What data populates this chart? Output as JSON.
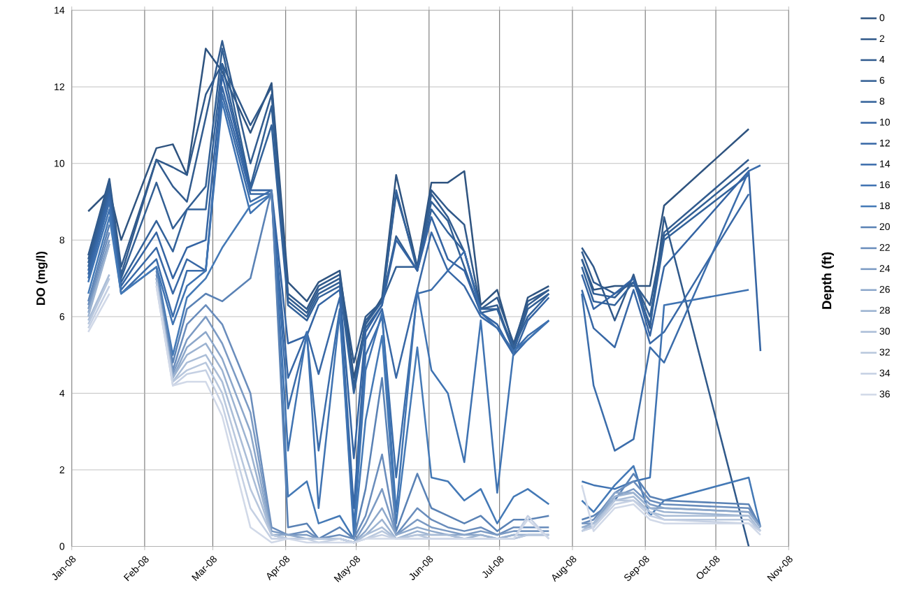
{
  "chart_data": {
    "type": "line",
    "ylabel": "DO (mg/l)",
    "legend_title": "Depth (ft)",
    "legend": "right",
    "grid": true,
    "marker": "none",
    "line_style": "solid",
    "x": [
      "2008-01-08",
      "2008-01-17",
      "2008-01-22",
      "2008-02-06",
      "2008-02-13",
      "2008-02-19",
      "2008-02-27",
      "2008-03-05",
      "2008-03-17",
      "2008-03-26",
      "2008-04-02",
      "2008-04-10",
      "2008-04-15",
      "2008-04-24",
      "2008-04-30",
      "2008-05-05",
      "2008-05-12",
      "2008-05-18",
      "2008-05-27",
      "2008-06-02",
      "2008-06-09",
      "2008-06-16",
      "2008-06-23",
      "2008-06-30",
      "2008-07-07",
      "2008-07-13",
      "2008-07-22",
      "2008-07-29",
      "2008-08-05",
      "2008-08-10",
      "2008-08-19",
      "2008-08-27",
      "2008-09-03",
      "2008-09-09",
      "2008-10-15",
      "2008-10-20"
    ],
    "xlim": [
      "2008-01-01",
      "2008-11-01"
    ],
    "xticks": [
      {
        "value": "2008-01-01",
        "label": "Jan-08"
      },
      {
        "value": "2008-02-01",
        "label": "Feb-08"
      },
      {
        "value": "2008-03-01",
        "label": "Mar-08"
      },
      {
        "value": "2008-04-01",
        "label": "Apr-08"
      },
      {
        "value": "2008-05-01",
        "label": "May-08"
      },
      {
        "value": "2008-06-01",
        "label": "Jun-08"
      },
      {
        "value": "2008-07-01",
        "label": "Jul-08"
      },
      {
        "value": "2008-08-01",
        "label": "Aug-08"
      },
      {
        "value": "2008-09-01",
        "label": "Sep-08"
      },
      {
        "value": "2008-10-01",
        "label": "Oct-08"
      },
      {
        "value": "2008-11-01",
        "label": "Nov-08"
      }
    ],
    "ylim": [
      0,
      14
    ],
    "yticks": [
      0,
      2,
      4,
      6,
      8,
      10,
      12,
      14
    ],
    "series": [
      {
        "name": "0",
        "color": "#2f5480",
        "values": [
          8.75,
          9.3,
          8.0,
          10.4,
          10.5,
          9.7,
          13.0,
          12.4,
          10.8,
          12.1,
          6.9,
          6.4,
          6.9,
          7.2,
          4.4,
          5.8,
          6.5,
          9.7,
          7.3,
          9.5,
          9.5,
          9.8,
          6.3,
          6.7,
          5.2,
          6.5,
          6.8,
          null,
          7.5,
          6.7,
          6.8,
          6.8,
          6.8,
          8.9,
          10.9,
          null
        ]
      },
      {
        "name": "2",
        "color": "#30598a",
        "values": [
          7.6,
          9.6,
          7.3,
          10.1,
          9.9,
          9.7,
          11.8,
          12.6,
          11.0,
          12.0,
          6.6,
          6.2,
          6.8,
          7.1,
          4.8,
          6.0,
          6.4,
          9.2,
          7.3,
          9.3,
          8.8,
          8.4,
          6.2,
          6.5,
          5.3,
          6.4,
          6.7,
          null,
          7.8,
          7.3,
          5.9,
          7.1,
          5.7,
          8.6,
          0.0,
          null
        ]
      },
      {
        "name": "4",
        "color": "#325c8f",
        "values": [
          7.5,
          9.5,
          7.1,
          10.1,
          9.4,
          9.0,
          11.2,
          13.2,
          10.0,
          11.8,
          6.5,
          6.1,
          6.7,
          7.0,
          4.1,
          5.9,
          6.4,
          8.1,
          7.2,
          9.2,
          8.6,
          7.7,
          6.2,
          6.3,
          5.1,
          6.3,
          6.7,
          null,
          7.7,
          6.9,
          6.6,
          6.9,
          6.3,
          8.2,
          10.1,
          null
        ]
      },
      {
        "name": "6",
        "color": "#325f94",
        "values": [
          7.4,
          9.4,
          7.0,
          9.5,
          8.3,
          8.8,
          9.4,
          13.0,
          9.4,
          11.5,
          6.4,
          6.0,
          6.6,
          6.9,
          4.2,
          5.8,
          6.4,
          7.3,
          7.3,
          9.0,
          8.5,
          7.3,
          6.1,
          6.2,
          5.1,
          6.2,
          6.6,
          null,
          7.5,
          6.6,
          6.5,
          7.0,
          6.0,
          8.1,
          9.9,
          null
        ]
      },
      {
        "name": "8",
        "color": "#33629a",
        "values": [
          7.3,
          9.3,
          6.9,
          8.5,
          7.7,
          8.8,
          8.8,
          12.6,
          9.3,
          11.0,
          6.3,
          5.9,
          6.5,
          6.8,
          4.0,
          5.7,
          6.3,
          9.3,
          7.2,
          8.8,
          8.2,
          7.7,
          6.2,
          6.2,
          5.2,
          6.0,
          6.6,
          null,
          7.3,
          6.4,
          6.3,
          6.9,
          5.8,
          8.0,
          9.7,
          null
        ]
      },
      {
        "name": "10",
        "color": "#3464a3",
        "values": [
          7.2,
          9.2,
          6.8,
          8.2,
          7.0,
          7.8,
          8.0,
          12.3,
          9.3,
          9.3,
          5.3,
          5.5,
          6.3,
          6.7,
          2.3,
          5.6,
          6.3,
          8.0,
          7.2,
          8.6,
          7.5,
          7.2,
          6.1,
          5.8,
          5.0,
          5.9,
          6.5,
          null,
          7.1,
          6.2,
          6.6,
          7.0,
          5.5,
          7.3,
          9.8,
          5.1
        ]
      },
      {
        "name": "12",
        "color": "#3868a6",
        "values": [
          7.1,
          9.1,
          6.7,
          7.8,
          6.6,
          7.5,
          7.2,
          12.0,
          9.2,
          9.2,
          4.4,
          5.6,
          4.5,
          6.5,
          1.0,
          5.4,
          6.2,
          4.4,
          6.7,
          8.2,
          7.2,
          6.8,
          6.0,
          5.7,
          5.0,
          5.4,
          5.9,
          null,
          6.7,
          5.7,
          5.2,
          6.7,
          5.3,
          5.6,
          9.2,
          null
        ]
      },
      {
        "name": "14",
        "color": "#3b6dab",
        "values": [
          7.0,
          9.0,
          6.6,
          7.5,
          6.0,
          7.2,
          7.2,
          11.8,
          9.0,
          9.3,
          3.6,
          5.5,
          2.5,
          6.2,
          0.5,
          5.0,
          6.0,
          1.8,
          6.6,
          6.7,
          7.2,
          7.7,
          6.1,
          5.7,
          5.1,
          5.5,
          5.9,
          null,
          6.6,
          4.2,
          2.5,
          2.8,
          5.2,
          4.8,
          9.8,
          9.95
        ]
      },
      {
        "name": "16",
        "color": "#3f73b2",
        "values": [
          6.9,
          8.8,
          6.6,
          7.3,
          5.8,
          6.8,
          7.2,
          11.6,
          8.7,
          9.2,
          2.5,
          5.6,
          1.0,
          6.1,
          0.3,
          4.6,
          6.1,
          0.9,
          6.7,
          4.6,
          4.0,
          2.2,
          5.9,
          1.4,
          5.1,
          5.4,
          5.9,
          null,
          1.7,
          1.6,
          1.5,
          1.7,
          1.8,
          6.3,
          6.7,
          null
        ]
      },
      {
        "name": "18",
        "color": "#4479b6",
        "values": [
          6.6,
          8.6,
          6.6,
          7.3,
          5.0,
          6.5,
          7.0,
          7.8,
          8.9,
          9.2,
          1.3,
          1.7,
          0.6,
          0.8,
          0.2,
          3.3,
          5.5,
          0.6,
          5.2,
          1.8,
          1.7,
          1.2,
          1.5,
          0.6,
          1.3,
          1.5,
          1.1,
          null,
          1.2,
          0.9,
          1.6,
          2.1,
          0.8,
          1.2,
          1.8,
          0.5
        ]
      },
      {
        "name": "20",
        "color": "#5a82b5",
        "values": [
          6.4,
          8.4,
          null,
          7.2,
          4.8,
          6.2,
          6.6,
          6.4,
          7.0,
          9.3,
          0.5,
          0.6,
          0.2,
          0.5,
          0.2,
          1.5,
          4.4,
          0.4,
          1.9,
          1.0,
          0.8,
          0.6,
          0.8,
          0.4,
          0.7,
          0.7,
          0.8,
          null,
          0.7,
          0.8,
          1.2,
          1.9,
          1.3,
          1.2,
          1.1,
          0.5
        ]
      },
      {
        "name": "22",
        "color": "#6a8dbc",
        "values": [
          6.3,
          8.2,
          null,
          7.1,
          4.6,
          5.8,
          6.3,
          5.8,
          4.0,
          0.5,
          0.3,
          0.4,
          0.2,
          0.3,
          0.2,
          0.8,
          2.4,
          0.3,
          1.0,
          0.7,
          0.5,
          0.4,
          0.5,
          0.3,
          0.5,
          0.5,
          0.5,
          null,
          0.6,
          0.7,
          1.4,
          1.7,
          1.2,
          1.1,
          1.0,
          0.5
        ]
      },
      {
        "name": "24",
        "color": "#7b9ac3",
        "values": [
          6.2,
          8.0,
          null,
          7.0,
          4.5,
          5.4,
          6.0,
          5.3,
          3.5,
          0.4,
          0.3,
          0.3,
          0.2,
          0.2,
          0.1,
          0.6,
          1.5,
          0.3,
          0.7,
          0.5,
          0.4,
          0.3,
          0.4,
          0.3,
          0.4,
          0.4,
          0.4,
          null,
          0.6,
          0.6,
          1.3,
          1.5,
          1.1,
          1.0,
          0.9,
          0.5
        ]
      },
      {
        "name": "26",
        "color": "#8ca7ca",
        "values": [
          6.1,
          7.9,
          null,
          7.0,
          4.4,
          5.2,
          5.6,
          4.9,
          3.0,
          0.3,
          0.3,
          0.2,
          0.2,
          0.2,
          0.1,
          0.4,
          1.0,
          0.3,
          0.5,
          0.4,
          0.3,
          0.3,
          0.3,
          0.2,
          0.3,
          0.3,
          0.3,
          null,
          0.5,
          0.6,
          1.4,
          1.4,
          1.0,
          1.0,
          0.9,
          0.5
        ]
      },
      {
        "name": "28",
        "color": "#9cb3d1",
        "values": [
          6.0,
          7.9,
          null,
          7.0,
          4.4,
          5.0,
          5.3,
          4.6,
          2.5,
          0.3,
          0.2,
          0.2,
          0.2,
          0.2,
          0.1,
          0.3,
          0.7,
          0.2,
          0.4,
          0.3,
          0.3,
          0.2,
          0.3,
          0.2,
          0.3,
          0.3,
          0.3,
          null,
          0.5,
          0.5,
          1.3,
          1.4,
          1.0,
          0.9,
          0.8,
          0.4
        ]
      },
      {
        "name": "30",
        "color": "#aabdd7",
        "values": [
          5.9,
          7.1,
          null,
          6.9,
          4.3,
          4.8,
          5.0,
          4.3,
          2.0,
          0.3,
          0.2,
          0.2,
          0.2,
          0.2,
          0.1,
          0.3,
          0.5,
          0.2,
          0.3,
          0.3,
          0.3,
          0.2,
          0.2,
          0.2,
          0.2,
          0.3,
          0.3,
          null,
          0.4,
          0.6,
          1.2,
          1.3,
          0.9,
          0.8,
          0.8,
          0.4
        ]
      },
      {
        "name": "32",
        "color": "#b8c7dd",
        "values": [
          5.8,
          7.0,
          null,
          6.9,
          4.3,
          4.6,
          4.8,
          4.0,
          1.5,
          0.3,
          0.2,
          0.2,
          0.2,
          0.2,
          0.1,
          0.2,
          0.4,
          0.2,
          0.3,
          0.2,
          0.2,
          0.2,
          0.2,
          0.2,
          0.2,
          0.3,
          0.3,
          null,
          0.4,
          0.5,
          1.2,
          1.2,
          0.9,
          0.7,
          0.7,
          0.4
        ]
      },
      {
        "name": "34",
        "color": "#c5d0e3",
        "values": [
          5.7,
          6.8,
          null,
          6.8,
          4.2,
          4.5,
          4.6,
          3.7,
          1.0,
          0.2,
          0.2,
          0.2,
          0.1,
          0.2,
          0.1,
          0.2,
          0.3,
          0.2,
          0.2,
          0.2,
          0.2,
          0.2,
          0.2,
          0.2,
          0.2,
          0.8,
          0.2,
          null,
          0.4,
          0.5,
          1.1,
          1.2,
          0.8,
          0.7,
          0.6,
          0.4
        ]
      },
      {
        "name": "36",
        "color": "#d1d9e8",
        "values": [
          5.6,
          6.6,
          null,
          6.8,
          4.2,
          4.3,
          4.3,
          3.4,
          0.5,
          0.1,
          0.2,
          0.1,
          0.1,
          0.1,
          0.1,
          0.2,
          0.2,
          0.2,
          0.2,
          0.2,
          0.2,
          0.2,
          0.2,
          0.2,
          0.2,
          0.7,
          0.2,
          null,
          1.6,
          0.4,
          1.0,
          1.1,
          0.7,
          0.6,
          0.6,
          0.3
        ]
      }
    ]
  }
}
